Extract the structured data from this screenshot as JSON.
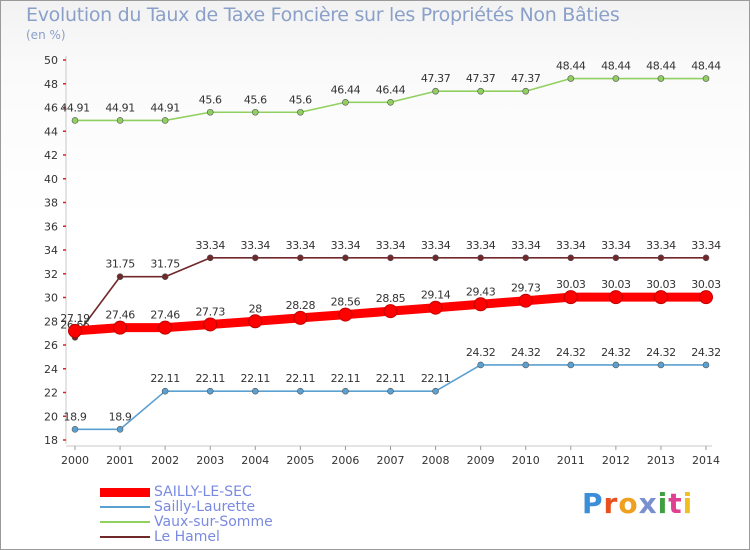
{
  "title": "Evolution du Taux de Taxe Foncière sur les Propriétés Non Bâties",
  "subtitle": "(en %)",
  "logo": {
    "letters": [
      "P",
      "r",
      "o",
      "x",
      "i",
      "t",
      "i"
    ],
    "colors": [
      "#3b8ed8",
      "#e85020",
      "#f0a020",
      "#7a8fd0",
      "#40a040",
      "#e04090",
      "#f0c020"
    ]
  },
  "chart_data": {
    "type": "line",
    "title": "Evolution du Taux de Taxe Foncière sur les Propriétés Non Bâties",
    "ylabel": "(en %)",
    "xlabel": "",
    "ylim": [
      18,
      50
    ],
    "yticks": [
      18,
      20,
      22,
      24,
      26,
      28,
      30,
      32,
      34,
      36,
      38,
      40,
      42,
      44,
      46,
      48,
      50
    ],
    "x": [
      "2000",
      "2001",
      "2002",
      "2003",
      "2004",
      "2005",
      "2006",
      "2007",
      "2008",
      "2009",
      "2010",
      "2011",
      "2012",
      "2013",
      "2014"
    ],
    "series": [
      {
        "name": "Vaux-sur-Somme",
        "color": "#90d060",
        "values": [
          44.91,
          44.91,
          44.91,
          45.6,
          45.6,
          45.6,
          46.44,
          46.44,
          47.37,
          47.37,
          47.37,
          48.44,
          48.44,
          48.44,
          48.44
        ],
        "labels": [
          "44.91",
          "44.91",
          "44.91",
          "45.6",
          "45.6",
          "45.6",
          "46.44",
          "46.44",
          "47.37",
          "47.37",
          "47.37",
          "48.44",
          "48.44",
          "48.44",
          "48.44"
        ]
      },
      {
        "name": "Le Hamel",
        "color": "#70282a",
        "values": [
          26.65,
          31.75,
          31.75,
          33.34,
          33.34,
          33.34,
          33.34,
          33.34,
          33.34,
          33.34,
          33.34,
          33.34,
          33.34,
          33.34,
          33.34
        ],
        "labels": [
          "26.65",
          "31.75",
          "31.75",
          "33.34",
          "33.34",
          "33.34",
          "33.34",
          "33.34",
          "33.34",
          "33.34",
          "33.34",
          "33.34",
          "33.34",
          "33.34",
          "33.34"
        ]
      },
      {
        "name": "SAILLY-LE-SEC",
        "color": "#ff0000",
        "values": [
          27.19,
          27.46,
          27.46,
          27.73,
          28,
          28.28,
          28.56,
          28.85,
          29.14,
          29.43,
          29.73,
          30.03,
          30.03,
          30.03,
          30.03
        ],
        "labels": [
          "27.19",
          "27.46",
          "27.46",
          "27.73",
          "28",
          "28.28",
          "28.56",
          "28.85",
          "29.14",
          "29.43",
          "29.73",
          "30.03",
          "30.03",
          "30.03",
          "30.03"
        ]
      },
      {
        "name": "Sailly-Laurette",
        "color": "#5aa0d0",
        "values": [
          18.9,
          18.9,
          22.11,
          22.11,
          22.11,
          22.11,
          22.11,
          22.11,
          22.11,
          24.32,
          24.32,
          24.32,
          24.32,
          24.32,
          24.32
        ],
        "labels": [
          "18.9",
          "18.9",
          "22.11",
          "22.11",
          "22.11",
          "22.11",
          "22.11",
          "22.11",
          "22.11",
          "24.32",
          "24.32",
          "24.32",
          "24.32",
          "24.32",
          "24.32"
        ]
      }
    ],
    "legend": {
      "position": "bottom-left",
      "entries": [
        "SAILLY-LE-SEC",
        "Sailly-Laurette",
        "Vaux-sur-Somme",
        "Le Hamel"
      ]
    }
  }
}
